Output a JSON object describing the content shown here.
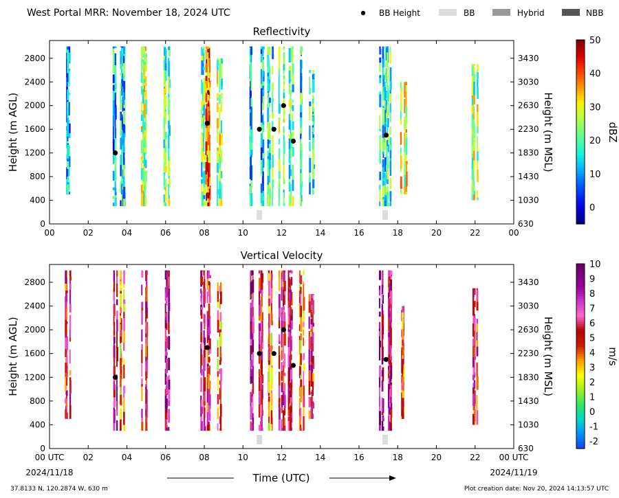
{
  "header": {
    "title": "West Portal MRR:  November 18, 2024 UTC",
    "legend": [
      {
        "label": "BB Height",
        "kind": "dot",
        "color": "#000000"
      },
      {
        "label": "BB",
        "kind": "box",
        "color": "#dcdcdc"
      },
      {
        "label": "Hybrid",
        "kind": "box",
        "color": "#999999"
      },
      {
        "label": "NBB",
        "kind": "box",
        "color": "#555555"
      }
    ]
  },
  "footer": {
    "location": "37.8133 N, 120.2874 W, 630 m",
    "created": "Plot creation date: Nov 20, 2024 14:13:57 UTC",
    "xlabel": "Time (UTC)",
    "date_start": "2024/11/18",
    "date_end": "2024/11/19"
  },
  "chart_data": [
    {
      "type": "heatmap",
      "title": "Reflectivity",
      "xlabel": "",
      "ylabel": "Height (m AGL)",
      "y2label": "Height (m MSL)",
      "xlim": [
        0,
        24
      ],
      "ylim": [
        0,
        3100
      ],
      "xticks": [
        "00",
        "02",
        "04",
        "06",
        "08",
        "10",
        "12",
        "14",
        "16",
        "18",
        "20",
        "22",
        "00"
      ],
      "yticks": [
        0,
        400,
        800,
        1200,
        1600,
        2000,
        2400,
        2800
      ],
      "y2ticks": [
        630,
        1030,
        1430,
        1830,
        2230,
        2630,
        3030,
        3430
      ],
      "colorbar": {
        "label": "dBZ",
        "min": -5,
        "max": 50,
        "ticks": [
          0,
          10,
          20,
          30,
          40,
          50
        ]
      },
      "bb_points": [
        {
          "x": 3.4,
          "y": 1200
        },
        {
          "x": 8.15,
          "y": 1700
        },
        {
          "x": 10.85,
          "y": 1600
        },
        {
          "x": 11.6,
          "y": 1600
        },
        {
          "x": 12.1,
          "y": 2000
        },
        {
          "x": 12.6,
          "y": 1400
        },
        {
          "x": 17.4,
          "y": 1500
        }
      ],
      "bb_flags": [
        {
          "x": 10.85,
          "type": "BB"
        },
        {
          "x": 17.35,
          "type": "BB"
        }
      ],
      "echo_columns": [
        {
          "x": 0.95,
          "bottom": 500,
          "top": 3000,
          "value": 10
        },
        {
          "x": 3.4,
          "bottom": 300,
          "top": 3000,
          "value": 12
        },
        {
          "x": 3.8,
          "bottom": 300,
          "top": 3000,
          "value": 14
        },
        {
          "x": 4.9,
          "bottom": 300,
          "top": 3000,
          "value": 25
        },
        {
          "x": 6.05,
          "bottom": 300,
          "top": 3000,
          "value": 22
        },
        {
          "x": 7.9,
          "bottom": 300,
          "top": 3000,
          "value": 20
        },
        {
          "x": 8.2,
          "bottom": 300,
          "top": 3000,
          "value": 38
        },
        {
          "x": 8.8,
          "bottom": 300,
          "top": 2800,
          "value": 24
        },
        {
          "x": 10.5,
          "bottom": 300,
          "top": 3000,
          "value": 12
        },
        {
          "x": 10.9,
          "bottom": 300,
          "top": 3000,
          "value": 15
        },
        {
          "x": 11.4,
          "bottom": 300,
          "top": 3000,
          "value": 18
        },
        {
          "x": 12.0,
          "bottom": 300,
          "top": 3000,
          "value": 22
        },
        {
          "x": 12.5,
          "bottom": 300,
          "top": 3000,
          "value": 20
        },
        {
          "x": 13.0,
          "bottom": 300,
          "top": 3000,
          "value": 16
        },
        {
          "x": 13.5,
          "bottom": 500,
          "top": 2600,
          "value": 18
        },
        {
          "x": 17.2,
          "bottom": 300,
          "top": 3000,
          "value": 16
        },
        {
          "x": 17.5,
          "bottom": 300,
          "top": 3000,
          "value": 20
        },
        {
          "x": 18.3,
          "bottom": 500,
          "top": 2400,
          "value": 28
        },
        {
          "x": 22.0,
          "bottom": 400,
          "top": 2700,
          "value": 25
        }
      ]
    },
    {
      "type": "heatmap",
      "title": "Vertical Velocity",
      "xlabel": "",
      "ylabel": "Height (m AGL)",
      "y2label": "Height (m MSL)",
      "xlim": [
        0,
        24
      ],
      "ylim": [
        0,
        3100
      ],
      "xticks": [
        "00 UTC",
        "02",
        "04",
        "06",
        "08",
        "10",
        "12",
        "14",
        "16",
        "18",
        "20",
        "22",
        "00 UTC"
      ],
      "yticks": [
        0,
        400,
        800,
        1200,
        1600,
        2000,
        2400,
        2800
      ],
      "y2ticks": [
        630,
        1030,
        1430,
        1830,
        2230,
        2630,
        3030,
        3430
      ],
      "colorbar": {
        "label": "m/s",
        "min": -2.5,
        "max": 10,
        "ticks": [
          -2,
          -1,
          0,
          1,
          2,
          3,
          4,
          5,
          6,
          7,
          8,
          9,
          10
        ]
      },
      "bb_points": [
        {
          "x": 3.4,
          "y": 1200
        },
        {
          "x": 8.15,
          "y": 1700
        },
        {
          "x": 10.85,
          "y": 1600
        },
        {
          "x": 11.6,
          "y": 1600
        },
        {
          "x": 12.1,
          "y": 2000
        },
        {
          "x": 12.6,
          "y": 1400
        },
        {
          "x": 17.4,
          "y": 1500
        }
      ],
      "bb_flags": [
        {
          "x": 10.85,
          "type": "BB"
        },
        {
          "x": 17.35,
          "type": "BB"
        }
      ],
      "echo_columns": [
        {
          "x": 0.95,
          "bottom": 500,
          "top": 3000,
          "value": 6
        },
        {
          "x": 3.4,
          "bottom": 300,
          "top": 3000,
          "value": 7
        },
        {
          "x": 3.8,
          "bottom": 300,
          "top": 3000,
          "value": 4
        },
        {
          "x": 4.9,
          "bottom": 300,
          "top": 3000,
          "value": 6
        },
        {
          "x": 6.05,
          "bottom": 300,
          "top": 3000,
          "value": 8
        },
        {
          "x": 7.9,
          "bottom": 300,
          "top": 3000,
          "value": 7
        },
        {
          "x": 8.2,
          "bottom": 300,
          "top": 3000,
          "value": 6
        },
        {
          "x": 8.8,
          "bottom": 300,
          "top": 2800,
          "value": 4
        },
        {
          "x": 10.5,
          "bottom": 300,
          "top": 3000,
          "value": 8
        },
        {
          "x": 10.9,
          "bottom": 300,
          "top": 3000,
          "value": 6
        },
        {
          "x": 11.4,
          "bottom": 300,
          "top": 3000,
          "value": 4
        },
        {
          "x": 12.0,
          "bottom": 300,
          "top": 3000,
          "value": 6
        },
        {
          "x": 12.5,
          "bottom": 300,
          "top": 3000,
          "value": 7
        },
        {
          "x": 13.0,
          "bottom": 300,
          "top": 3000,
          "value": 4
        },
        {
          "x": 13.5,
          "bottom": 500,
          "top": 2600,
          "value": 6
        },
        {
          "x": 17.2,
          "bottom": 300,
          "top": 3000,
          "value": 8
        },
        {
          "x": 17.5,
          "bottom": 300,
          "top": 3000,
          "value": 7
        },
        {
          "x": 18.3,
          "bottom": 500,
          "top": 2400,
          "value": 5
        },
        {
          "x": 22.0,
          "bottom": 400,
          "top": 2700,
          "value": 6
        }
      ]
    }
  ]
}
